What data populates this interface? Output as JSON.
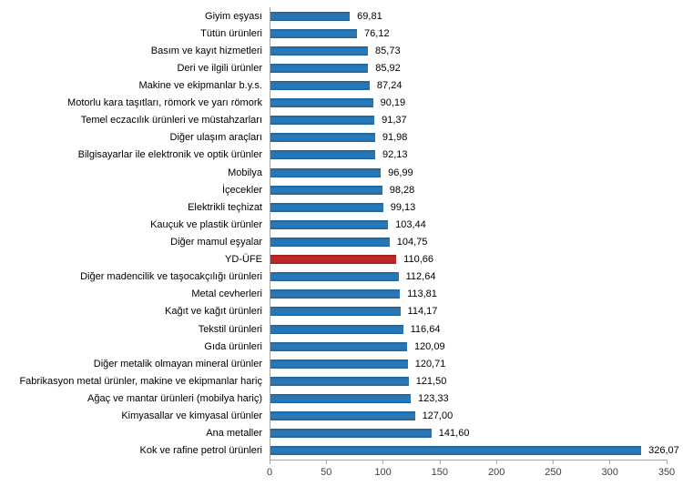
{
  "chart_data": {
    "type": "bar",
    "orientation": "horizontal",
    "title": "",
    "xlabel": "",
    "ylabel": "",
    "xlim": [
      0,
      350
    ],
    "x_ticks": [
      "0",
      "50",
      "100",
      "150",
      "200",
      "250",
      "300",
      "350"
    ],
    "grid": false,
    "legend": "none",
    "highlight_label": "YD-ÜFE",
    "colors": {
      "bar": "#2878b8",
      "bar_edge": "#1f639c",
      "highlight": "#bd2a25",
      "highlight_edge": "#9e211d",
      "axis": "#a3a3a3",
      "tick_text": "#3f3f3f",
      "label_text": "#000000"
    },
    "items": [
      {
        "label": "Giyim eşyası",
        "value": 69.81,
        "display": "69,81"
      },
      {
        "label": "Tütün ürünleri",
        "value": 76.12,
        "display": "76,12"
      },
      {
        "label": "Basım ve kayıt hizmetleri",
        "value": 85.73,
        "display": "85,73"
      },
      {
        "label": "Deri ve ilgili ürünler",
        "value": 85.92,
        "display": "85,92"
      },
      {
        "label": "Makine ve ekipmanlar b.y.s.",
        "value": 87.24,
        "display": "87,24"
      },
      {
        "label": "Motorlu kara taşıtları, römork ve yarı römork",
        "value": 90.19,
        "display": "90,19"
      },
      {
        "label": "Temel eczacılık ürünleri ve müstahzarları",
        "value": 91.37,
        "display": "91,37"
      },
      {
        "label": "Diğer ulaşım araçları",
        "value": 91.98,
        "display": "91,98"
      },
      {
        "label": "Bilgisayarlar ile elektronik ve optik ürünler",
        "value": 92.13,
        "display": "92,13"
      },
      {
        "label": "Mobilya",
        "value": 96.99,
        "display": "96,99"
      },
      {
        "label": "İçecekler",
        "value": 98.28,
        "display": "98,28"
      },
      {
        "label": "Elektrikli teçhizat",
        "value": 99.13,
        "display": "99,13"
      },
      {
        "label": "Kauçuk ve plastik ürünler",
        "value": 103.44,
        "display": "103,44"
      },
      {
        "label": "Diğer mamul eşyalar",
        "value": 104.75,
        "display": "104,75"
      },
      {
        "label": "YD-ÜFE",
        "value": 110.66,
        "display": "110,66"
      },
      {
        "label": "Diğer madencilik ve taşocakçılığı ürünleri",
        "value": 112.64,
        "display": "112,64"
      },
      {
        "label": "Metal cevherleri",
        "value": 113.81,
        "display": "113,81"
      },
      {
        "label": "Kağıt ve kağıt ürünleri",
        "value": 114.17,
        "display": "114,17"
      },
      {
        "label": "Tekstil ürünleri",
        "value": 116.64,
        "display": "116,64"
      },
      {
        "label": "Gıda ürünleri",
        "value": 120.09,
        "display": "120,09"
      },
      {
        "label": "Diğer metalik olmayan mineral ürünler",
        "value": 120.71,
        "display": "120,71"
      },
      {
        "label": "Fabrikasyon metal ürünler, makine ve ekipmanlar hariç",
        "value": 121.5,
        "display": "121,50"
      },
      {
        "label": "Ağaç ve mantar ürünleri (mobilya hariç)",
        "value": 123.33,
        "display": "123,33"
      },
      {
        "label": "Kimyasallar ve kimyasal ürünler",
        "value": 127.0,
        "display": "127,00"
      },
      {
        "label": "Ana metaller",
        "value": 141.6,
        "display": "141,60"
      },
      {
        "label": "Kok ve rafine petrol ürünleri",
        "value": 326.07,
        "display": "326,07"
      }
    ]
  }
}
